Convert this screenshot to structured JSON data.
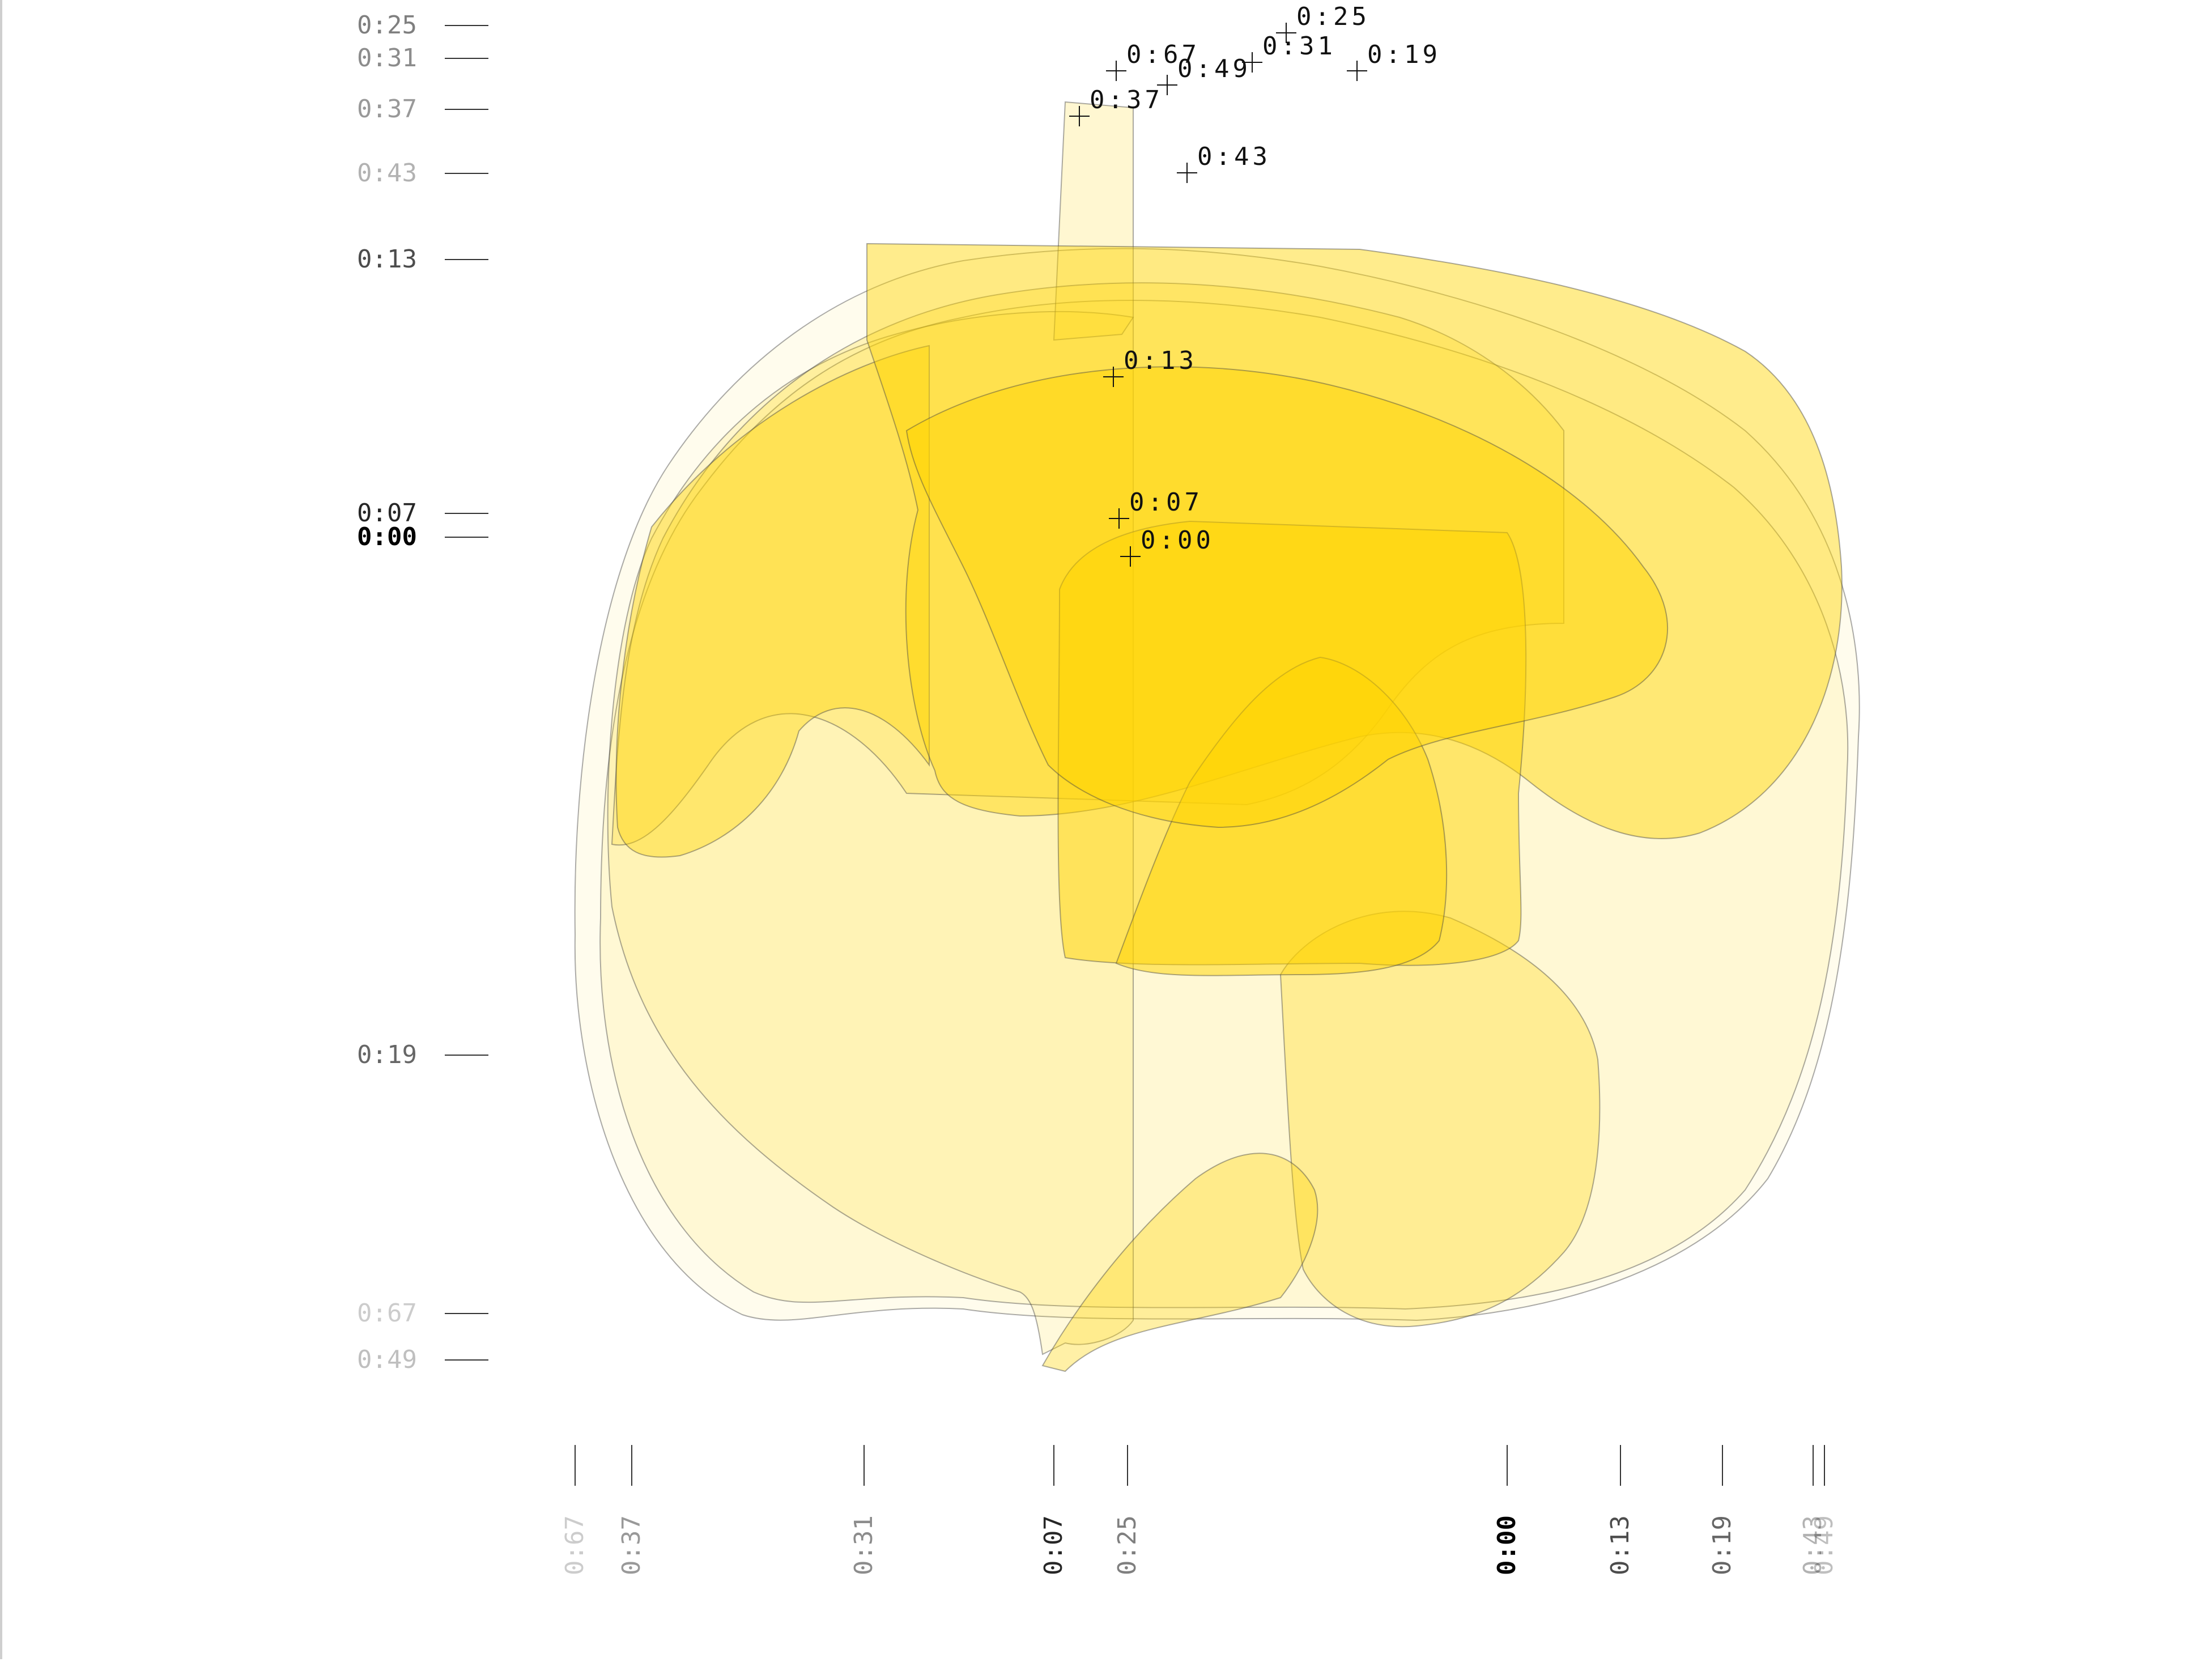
{
  "colors": {
    "fill": "#ffd400",
    "outline": "#444444",
    "tick": "#333333",
    "marker": "#111111"
  },
  "frames": [
    {
      "label": "0:00",
      "marker": true,
      "label_opacity": 1.0,
      "fill_opacity": 0.5,
      "y_label": "0:00",
      "x_label": "0:00"
    },
    {
      "label": "0:07",
      "marker": true,
      "label_opacity": 0.85,
      "fill_opacity": 0.45,
      "y_label": "0:07",
      "x_label": "0:07"
    },
    {
      "label": "0:13",
      "marker": true,
      "label_opacity": 0.7,
      "fill_opacity": 0.4,
      "y_label": "0:13",
      "x_label": "0:13"
    },
    {
      "label": "0:19",
      "marker": true,
      "label_opacity": 0.6,
      "fill_opacity": 0.35,
      "y_label": "0:19",
      "x_label": "0:19"
    },
    {
      "label": "0:25",
      "marker": true,
      "label_opacity": 0.5,
      "fill_opacity": 0.3,
      "y_label": "0:25",
      "x_label": "0:25"
    },
    {
      "label": "0:31",
      "marker": true,
      "label_opacity": 0.45,
      "fill_opacity": 0.22,
      "y_label": "0:31",
      "x_label": "0:31"
    },
    {
      "label": "0:37",
      "marker": true,
      "label_opacity": 0.4,
      "fill_opacity": 0.18,
      "y_label": "0:37",
      "x_label": "0:37"
    },
    {
      "label": "0:43",
      "marker": true,
      "label_opacity": 0.3,
      "fill_opacity": 0.14,
      "y_label": "0:43",
      "x_label": "0:43"
    },
    {
      "label": "0:49",
      "marker": true,
      "label_opacity": 0.25,
      "fill_opacity": 0.1,
      "y_label": "0:49",
      "x_label": "0:49"
    },
    {
      "label": "0:67",
      "marker": true,
      "label_opacity": 0.2,
      "fill_opacity": 0.07,
      "y_label": "0:67",
      "x_label": "0:67"
    }
  ]
}
